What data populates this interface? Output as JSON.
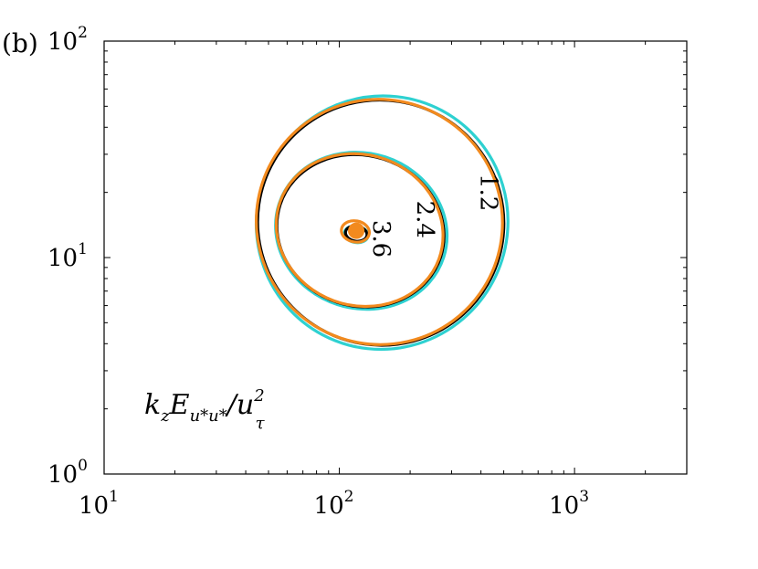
{
  "panel_label": "(b)",
  "annotation": {
    "parts": [
      {
        "text": "k",
        "shift": "base"
      },
      {
        "text": "z",
        "shift": "sub"
      },
      {
        "text": "E",
        "shift": "base"
      },
      {
        "text": "u*u*",
        "shift": "sub"
      },
      {
        "text": "/u",
        "shift": "base"
      },
      {
        "text": "2",
        "shift": "sup"
      },
      {
        "text": "τ",
        "shift": "subunder"
      }
    ]
  },
  "chart_data": {
    "type": "contour",
    "title": "",
    "xlabel": "",
    "ylabel": "",
    "xscale": "log",
    "yscale": "log",
    "xlim": [
      10,
      3000
    ],
    "ylim": [
      1,
      100
    ],
    "grid": false,
    "x_ticks": [
      {
        "base": "10",
        "exp": "1",
        "value": 10
      },
      {
        "base": "10",
        "exp": "2",
        "value": 100
      },
      {
        "base": "10",
        "exp": "3",
        "value": 1000
      }
    ],
    "y_ticks": [
      {
        "base": "10",
        "exp": "0",
        "value": 1
      },
      {
        "base": "10",
        "exp": "1",
        "value": 10
      },
      {
        "base": "10",
        "exp": "2",
        "value": 100
      }
    ],
    "contour_levels": [
      {
        "label": "1.2",
        "value": 1.2,
        "label_at": [
          400,
          20
        ]
      },
      {
        "label": "2.4",
        "value": 2.4,
        "label_at": [
          215,
          15
        ]
      },
      {
        "label": "3.6",
        "value": 3.6,
        "label_at": [
          140,
          12.2
        ]
      }
    ],
    "series": [
      {
        "color": "#2ed1d1",
        "contours": [
          {
            "level": 1.2,
            "center": [
              152,
              14.5
            ],
            "rx_decades": 0.54,
            "ry_decades": 0.58,
            "tilt_deg": 62
          },
          {
            "level": 2.4,
            "center": [
              124,
              13.3
            ],
            "rx_decades": 0.33,
            "ry_decades": 0.4,
            "tilt_deg": 72
          },
          {
            "level": 3.6,
            "center": [
              118,
              12.8
            ],
            "rx_decades": 0.035,
            "ry_decades": 0.055,
            "tilt_deg": 80
          }
        ]
      },
      {
        "color": "#000000",
        "contours": [
          {
            "level": 1.2,
            "center": [
              150,
              14.5
            ],
            "rx_decades": 0.52,
            "ry_decades": 0.57,
            "tilt_deg": 60
          },
          {
            "level": 2.4,
            "center": [
              123,
              13.3
            ],
            "rx_decades": 0.32,
            "ry_decades": 0.39,
            "tilt_deg": 72
          },
          {
            "level": 3.6,
            "center": [
              118,
              12.9
            ],
            "rx_decades": 0.032,
            "ry_decades": 0.05,
            "tilt_deg": 80
          }
        ]
      },
      {
        "color": "#f28a1e",
        "contours": [
          {
            "level": 1.2,
            "center": [
              148,
              14.6
            ],
            "rx_decades": 0.52,
            "ry_decades": 0.57,
            "tilt_deg": 58
          },
          {
            "level": 2.4,
            "center": [
              122,
              13.4
            ],
            "rx_decades": 0.32,
            "ry_decades": 0.39,
            "tilt_deg": 70
          },
          {
            "level": 3.6,
            "center": [
              117,
              13.2
            ],
            "rx_decades": 0.045,
            "ry_decades": 0.065,
            "tilt_deg": 80
          }
        ],
        "peak": [
          118,
          13.3
        ]
      }
    ]
  }
}
